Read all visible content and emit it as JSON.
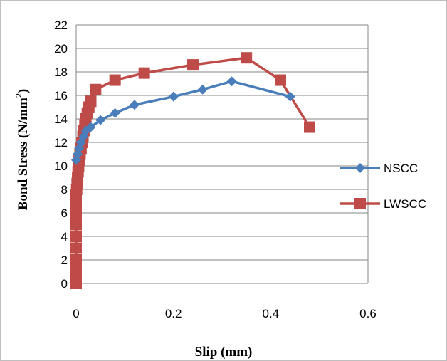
{
  "chart_data": {
    "type": "line",
    "xlabel": "Slip (mm)",
    "ylabel": "Bond Stress (N/mm",
    "ylabel_sup": "2",
    "ylabel_close": ")",
    "xlim": [
      0,
      0.6
    ],
    "ylim": [
      0,
      22
    ],
    "x_ticks": [
      "0",
      "0.2",
      "0.4",
      "0.6"
    ],
    "y_ticks": [
      "0",
      "2",
      "4",
      "6",
      "8",
      "10",
      "12",
      "14",
      "16",
      "18",
      "20",
      "22"
    ],
    "grid": "horizontal",
    "legend_position": "right",
    "series": [
      {
        "name": "NSCC",
        "color": "#4a7ebb",
        "marker": "diamond",
        "x": [
          0.0,
          0.003,
          0.006,
          0.01,
          0.015,
          0.02,
          0.03,
          0.05,
          0.08,
          0.12,
          0.2,
          0.26,
          0.32,
          0.44
        ],
        "y": [
          10.5,
          11.0,
          11.5,
          12.0,
          12.5,
          13.0,
          13.3,
          13.9,
          14.5,
          15.2,
          15.9,
          16.5,
          17.2,
          15.9
        ]
      },
      {
        "name": "LWSCC",
        "color": "#be4b48",
        "marker": "square",
        "x": [
          0.0,
          0.0,
          0.0,
          0.0,
          0.0,
          0.0,
          0.0,
          0.0,
          0.0,
          0.0,
          0.0,
          0.0,
          0.001,
          0.002,
          0.003,
          0.004,
          0.005,
          0.006,
          0.008,
          0.01,
          0.012,
          0.014,
          0.016,
          0.018,
          0.02,
          0.023,
          0.026,
          0.03,
          0.04,
          0.08,
          0.14,
          0.24,
          0.35,
          0.42,
          0.48
        ],
        "y": [
          0.0,
          0.5,
          1.0,
          2.0,
          3.0,
          4.0,
          5.0,
          5.5,
          6.0,
          6.5,
          7.0,
          7.5,
          8.0,
          8.5,
          9.0,
          9.5,
          10.0,
          10.5,
          11.0,
          11.5,
          12.0,
          12.5,
          13.0,
          13.5,
          14.0,
          14.5,
          15.0,
          15.5,
          16.5,
          17.3,
          17.9,
          18.6,
          19.2,
          17.3,
          13.3
        ]
      }
    ]
  }
}
